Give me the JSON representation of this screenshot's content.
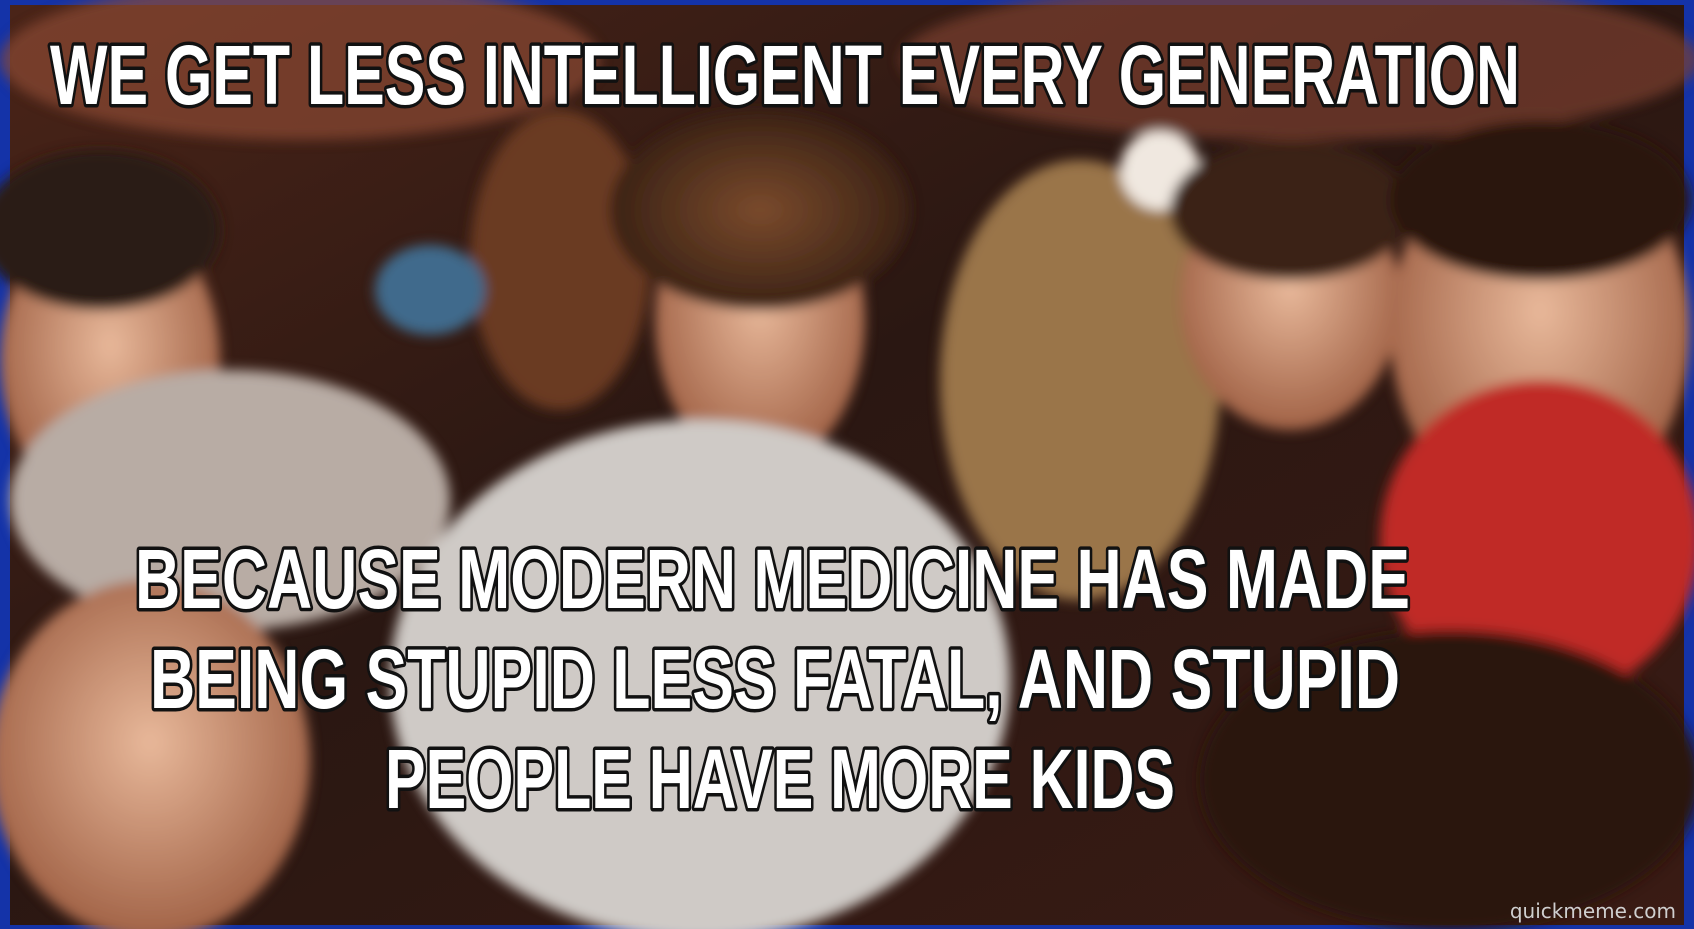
{
  "meme": {
    "top_text": "WE GET LESS INTELLIGENT EVERY GENERATION",
    "bottom_text": [
      "BECAUSE MODERN MEDICINE HAS MADE",
      "BEING STUPID LESS FATAL, AND STUPID",
      "PEOPLE HAVE MORE KIDS"
    ],
    "watermark": "quickmeme.com"
  }
}
